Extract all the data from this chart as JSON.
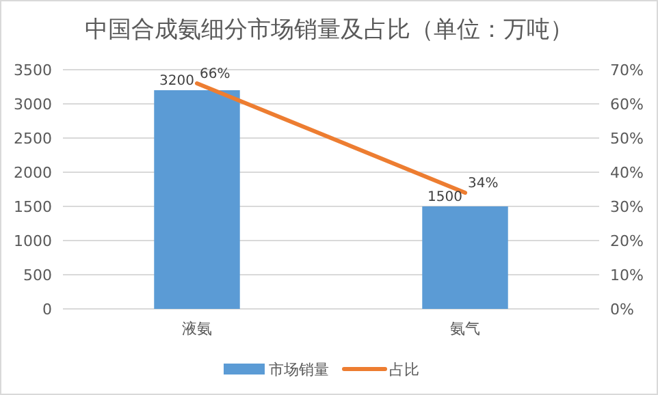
{
  "chart_data": {
    "type": "bar",
    "title": "中国合成氨细分市场销量及占比（单位：万吨）",
    "categories": [
      "液氨",
      "氨气"
    ],
    "series": [
      {
        "name": "市场销量",
        "color": "#5b9bd5",
        "values": [
          3200,
          1500
        ],
        "value_labels": [
          "3200",
          "1500"
        ]
      },
      {
        "name": "占比",
        "type": "line",
        "axis": "y2",
        "color": "#ed7d31",
        "values": [
          66,
          34
        ],
        "value_labels": [
          "66%",
          "34%"
        ],
        "marker": "none"
      }
    ],
    "ylim": [
      0,
      3500
    ],
    "yticks": [
      0,
      500,
      1000,
      1500,
      2000,
      2500,
      3000,
      3500
    ],
    "y2lim": [
      0,
      70
    ],
    "y2ticks": [
      {
        "value": 0,
        "label": "0%"
      },
      {
        "value": 10,
        "label": "10%"
      },
      {
        "value": 20,
        "label": "20%"
      },
      {
        "value": 30,
        "label": "30%"
      },
      {
        "value": 40,
        "label": "40%"
      },
      {
        "value": 50,
        "label": "50%"
      },
      {
        "value": 60,
        "label": "60%"
      },
      {
        "value": 70,
        "label": "70%"
      }
    ],
    "grid": "y",
    "legend": "bottom"
  }
}
